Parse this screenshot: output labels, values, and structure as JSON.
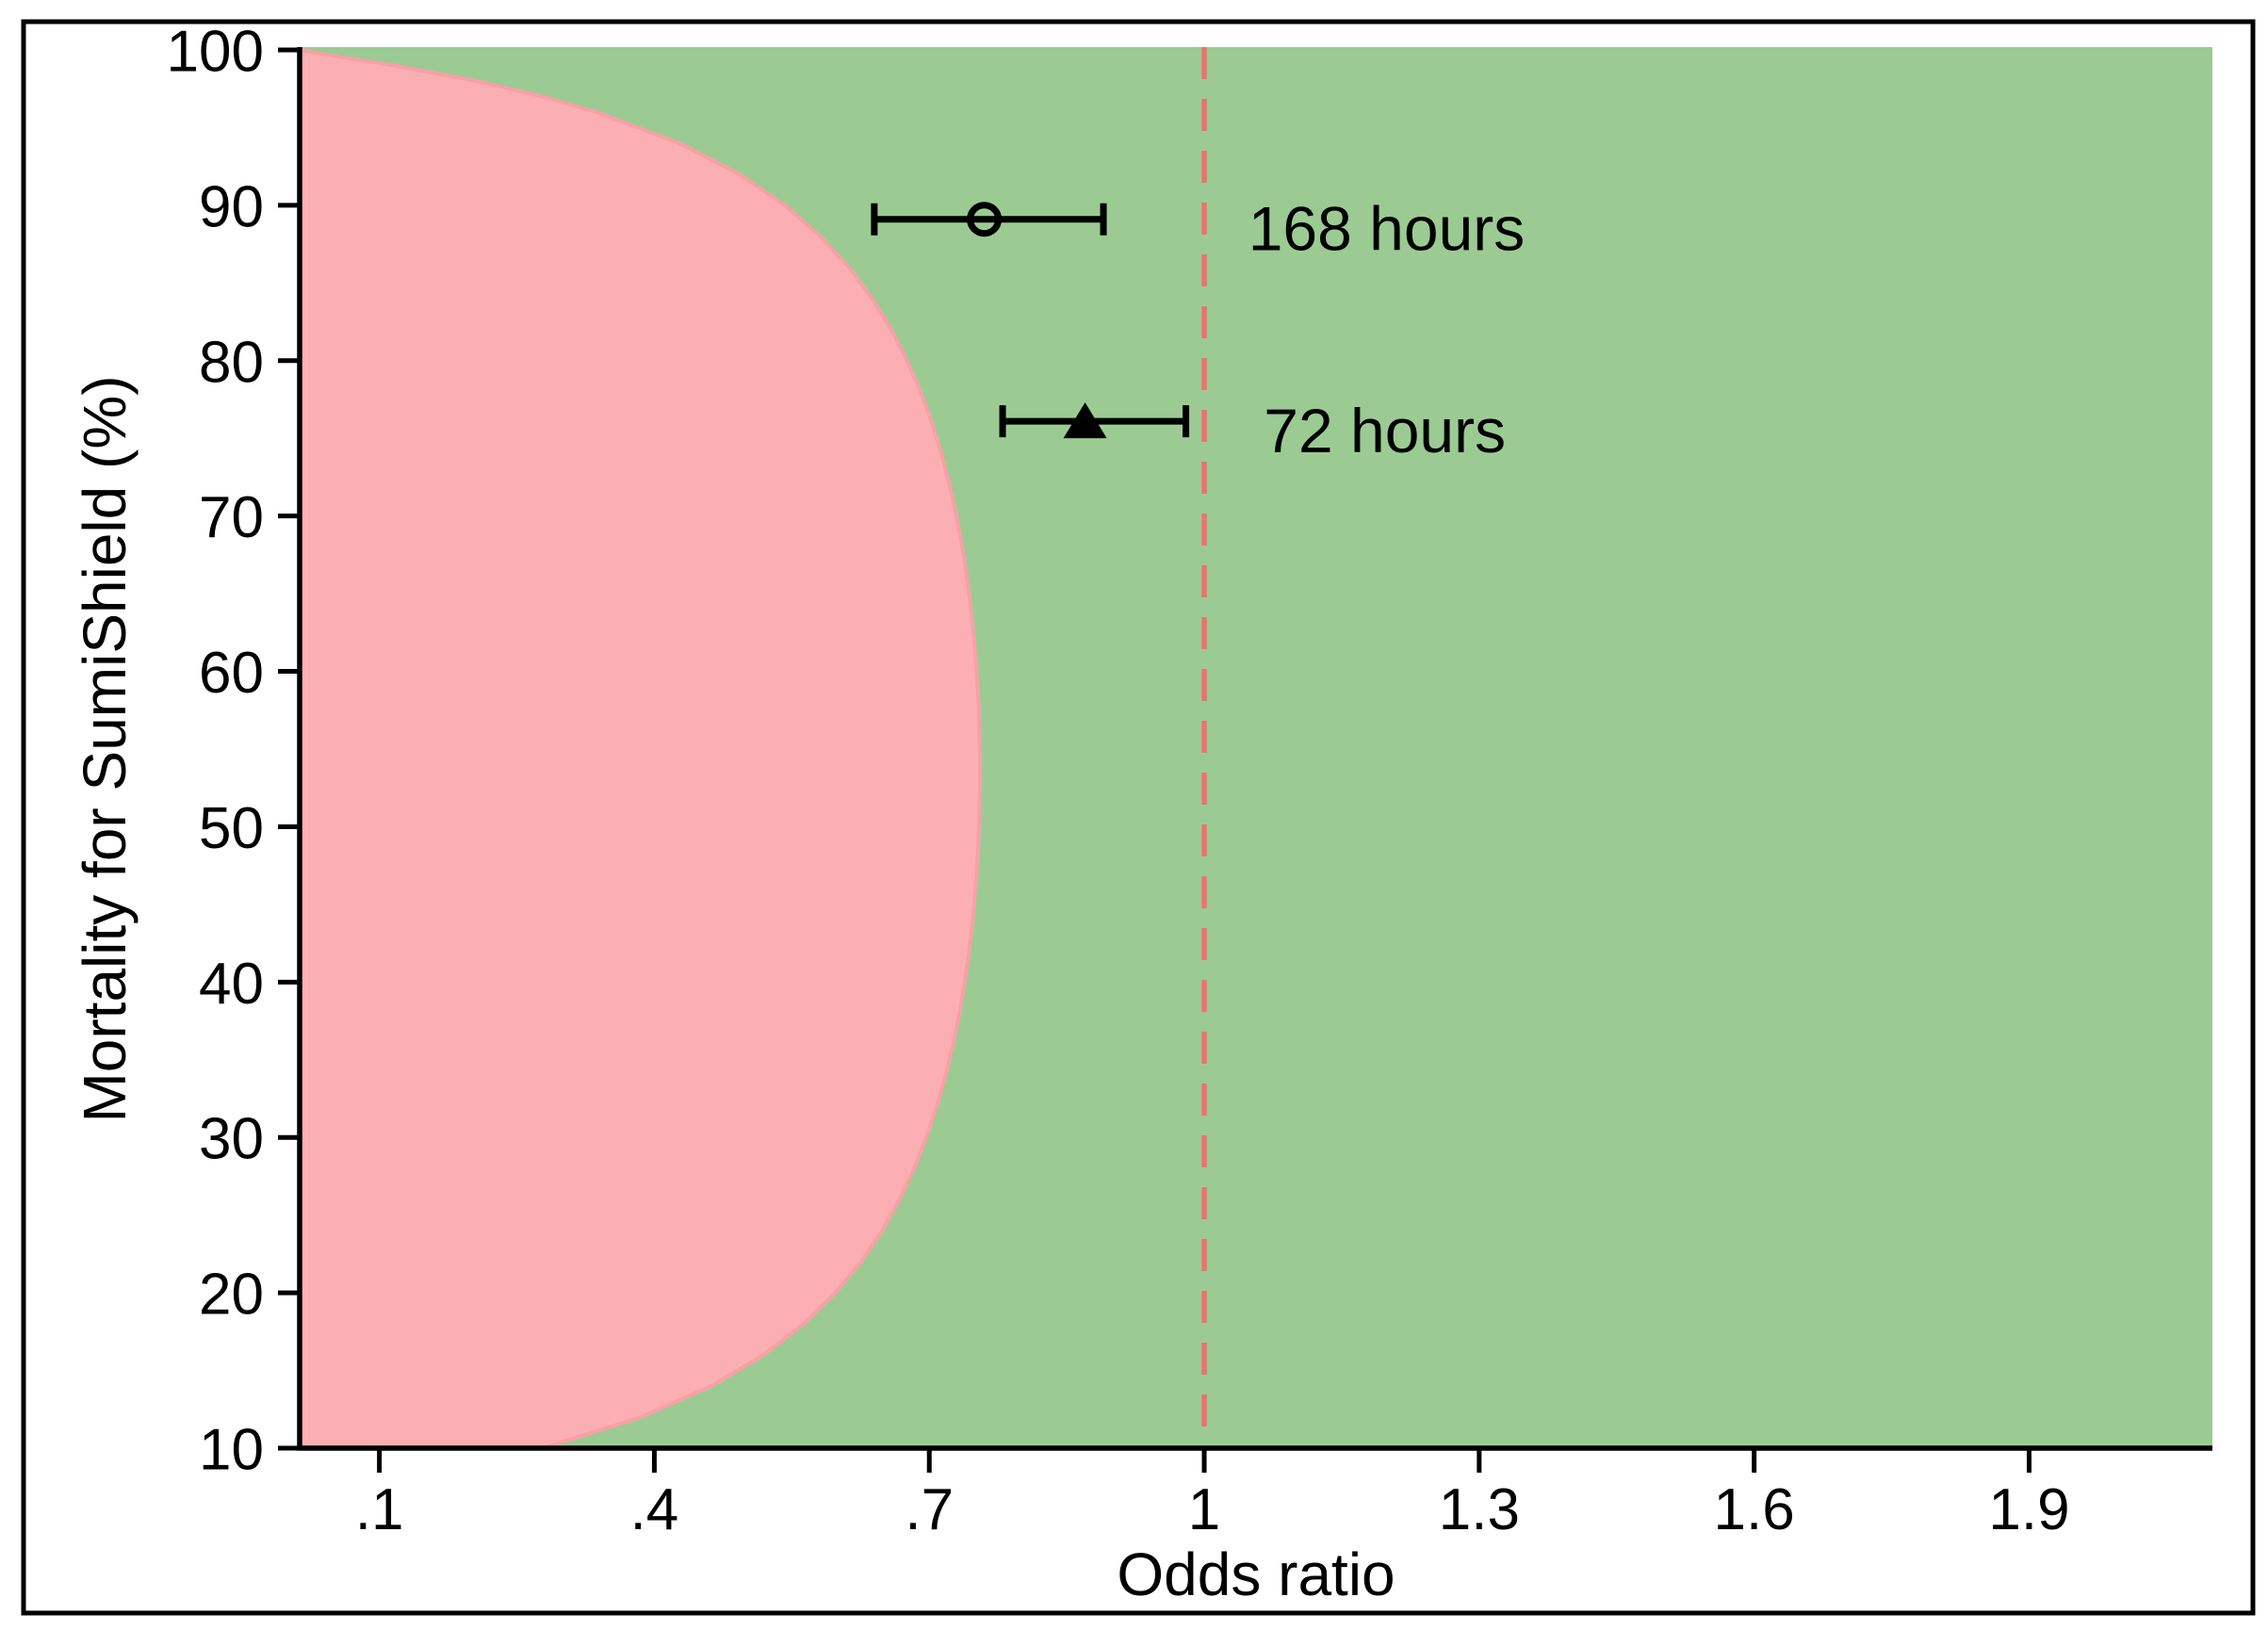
{
  "figure": {
    "background": "#ffffff",
    "border_color": "#000000"
  },
  "chart_data": {
    "type": "scatter",
    "title": "",
    "xlabel": "Odds ratio",
    "ylabel": "Mortality for SumiShield (%)",
    "xlim": [
      0.013,
      2.1
    ],
    "ylim": [
      10,
      100
    ],
    "grid": false,
    "legend": "none",
    "x_ticks": [
      {
        "value": 0.1,
        "label": ".1"
      },
      {
        "value": 0.4,
        "label": ".4"
      },
      {
        "value": 0.7,
        "label": ".7"
      },
      {
        "value": 1.0,
        "label": "1"
      },
      {
        "value": 1.3,
        "label": "1.3"
      },
      {
        "value": 1.6,
        "label": "1.6"
      },
      {
        "value": 1.9,
        "label": "1.9"
      }
    ],
    "y_ticks": [
      {
        "value": 100,
        "label": "100"
      },
      {
        "value": 90,
        "label": "90"
      },
      {
        "value": 80,
        "label": "80"
      },
      {
        "value": 70,
        "label": "70"
      },
      {
        "value": 60,
        "label": "60"
      },
      {
        "value": 50,
        "label": "50"
      },
      {
        "value": 40,
        "label": "40"
      },
      {
        "value": 30,
        "label": "30"
      },
      {
        "value": 20,
        "label": "20"
      },
      {
        "value": 10,
        "label": "10"
      }
    ],
    "reference_line": {
      "x": 1,
      "style": "dashed",
      "color": "#F0716C",
      "dash": "34 21",
      "width": 5.5
    },
    "regions": {
      "non_inferiority": {
        "color": "#9BCB93",
        "description": "green region right of boundary (non-inferior)"
      },
      "inferiority": {
        "color": "#FBAFB2",
        "edge_color": "#F9A0A6",
        "description": "pink region left of boundary (inferior)"
      },
      "boundary_points": [
        [
          100,
          0.0
        ],
        [
          99.5,
          0.062
        ],
        [
          99,
          0.1162
        ],
        [
          98,
          0.2063
        ],
        [
          97,
          0.2784
        ],
        [
          96,
          0.3371
        ],
        [
          94,
          0.4272
        ],
        [
          92,
          0.4928
        ],
        [
          90,
          0.5425
        ],
        [
          88,
          0.5813
        ],
        [
          86,
          0.6124
        ],
        [
          84,
          0.6377
        ],
        [
          82,
          0.6585
        ],
        [
          80,
          0.6759
        ],
        [
          78,
          0.6906
        ],
        [
          76,
          0.7029
        ],
        [
          74,
          0.7133
        ],
        [
          72,
          0.7222
        ],
        [
          70,
          0.7297
        ],
        [
          68,
          0.736
        ],
        [
          66,
          0.7413
        ],
        [
          64,
          0.7456
        ],
        [
          62,
          0.7491
        ],
        [
          60,
          0.7518
        ],
        [
          58,
          0.7537
        ],
        [
          56,
          0.7549
        ],
        [
          54,
          0.7554
        ],
        [
          52,
          0.7552
        ],
        [
          50,
          0.7544
        ],
        [
          48,
          0.7528
        ],
        [
          46,
          0.7505
        ],
        [
          44,
          0.7475
        ],
        [
          42,
          0.7436
        ],
        [
          40,
          0.7388
        ],
        [
          38,
          0.733
        ],
        [
          36,
          0.7261
        ],
        [
          34,
          0.718
        ],
        [
          32,
          0.7083
        ],
        [
          30,
          0.697
        ],
        [
          28,
          0.6835
        ],
        [
          26,
          0.6676
        ],
        [
          24,
          0.6486
        ],
        [
          22,
          0.6257
        ],
        [
          20,
          0.5977
        ],
        [
          18,
          0.5631
        ],
        [
          16,
          0.5192
        ],
        [
          14,
          0.4624
        ],
        [
          12,
          0.386
        ],
        [
          10,
          0.2784
        ]
      ]
    },
    "series": [
      {
        "name": "168 hours",
        "marker": "open-circle",
        "color": "#000000",
        "y_mortality": 89.1,
        "odds_ratio": 0.76,
        "ci_low": 0.64,
        "ci_high": 0.89,
        "label_x": 1.048,
        "label_y": 88.5
      },
      {
        "name": "72 hours",
        "marker": "filled-triangle",
        "color": "#000000",
        "y_mortality": 76.1,
        "odds_ratio": 0.87,
        "ci_low": 0.78,
        "ci_high": 0.98,
        "label_x": 1.065,
        "label_y": 75.5
      }
    ]
  }
}
